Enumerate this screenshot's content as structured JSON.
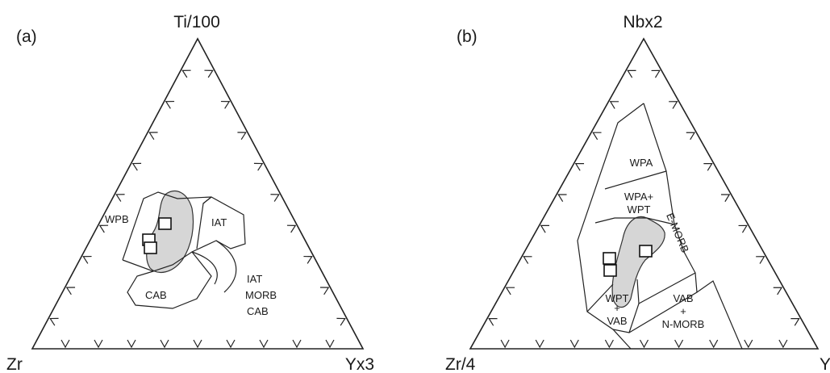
{
  "diagram_a": {
    "panel_label": "(a)",
    "apex_top": "Ti/100",
    "apex_left": "Zr",
    "apex_right": "Yx3",
    "fields": {
      "wpb": "WPB",
      "iat": "IAT",
      "cab": "CAB",
      "iat_morb_cab_1": "IAT",
      "iat_morb_cab_2": "MORB",
      "iat_morb_cab_3": "CAB"
    }
  },
  "diagram_b": {
    "panel_label": "(b)",
    "apex_top": "Nbx2",
    "apex_left": "Zr/4",
    "apex_right": "Y",
    "fields": {
      "wpa": "WPA",
      "wpa_wpt_1": "WPA+",
      "wpa_wpt_2": "WPT",
      "emorb": "E-MORB",
      "wpt_vab_1": "WPT",
      "wpt_vab_2": "+",
      "wpt_vab_3": "VAB",
      "vab_nmorb_1": "VAB",
      "vab_nmorb_2": "+",
      "vab_nmorb_3": "N-MORB"
    }
  },
  "colors": {
    "line": "#222222",
    "sample_field_fill": "#d6d6d6",
    "sample_marker_fill": "#ffffff"
  }
}
